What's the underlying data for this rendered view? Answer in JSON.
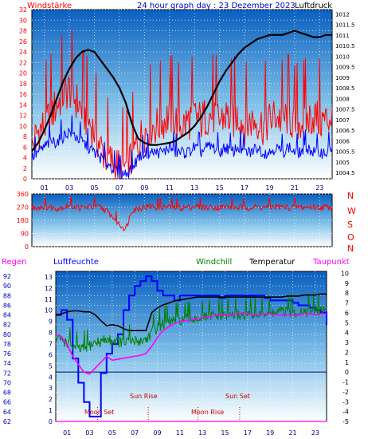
{
  "colors": {
    "wind": "#ff0000",
    "gust_base": "#0000ff",
    "pressure": "#000000",
    "humidity": "#0000ff",
    "windchill": "#008000",
    "temperature": "#000000",
    "dewpoint": "#ff00ff",
    "sun_moon_markers": "#cc0000",
    "zero_line": "#000080",
    "bg_top": "#0a60c0",
    "bg_bottom": "#ffffff"
  },
  "header": {
    "left": "Windstärke",
    "center": "24 hour graph day : 23 Dezember 2023",
    "right": "Luftdruck"
  },
  "direction_letters": [
    "N",
    "W",
    "S",
    "O",
    "N"
  ],
  "legend": {
    "regen": "Regen",
    "luftfeuchte": "Luftfeuchte",
    "windchill": "Windchill",
    "temperatur": "Temperatur",
    "taupunkt": "Taupunkt"
  },
  "events": [
    {
      "label": "Moon Set",
      "x": 3.7
    },
    {
      "label": "Sun Rise",
      "x": 8.2
    },
    {
      "label": "Moon Rise",
      "x": 12.6
    },
    {
      "label": "Sun Set",
      "x": 16.3
    }
  ],
  "chart_data": [
    {
      "type": "line",
      "title": "24 hour graph day : 23 Dezember 2023",
      "x_ticks": [
        "01",
        "03",
        "05",
        "07",
        "09",
        "11",
        "13",
        "15",
        "17",
        "19",
        "21",
        "23"
      ],
      "xlim": [
        0,
        24
      ],
      "y_left": {
        "label": "Windstärke",
        "ticks": [
          0,
          2,
          4,
          6,
          8,
          10,
          12,
          14,
          16,
          18,
          20,
          22,
          24,
          26,
          28,
          30,
          32
        ],
        "ylim": [
          0,
          32
        ]
      },
      "y_right": {
        "label": "Luftdruck",
        "ticks": [
          1004.5,
          1005,
          1005.5,
          1006,
          1006.5,
          1007,
          1007.5,
          1008,
          1008.5,
          1009,
          1009.5,
          1010,
          1010.5,
          1011,
          1011.5,
          1012
        ],
        "ylim": [
          1004.2,
          1012.2
        ]
      },
      "series": [
        {
          "name": "Windstärke",
          "axis": "left",
          "x": [
            0,
            0.5,
            1,
            1.5,
            2,
            2.5,
            3,
            3.5,
            4,
            4.5,
            5,
            5.5,
            6,
            6.5,
            7,
            7.5,
            8,
            8.5,
            9,
            9.5,
            10,
            10.5,
            11,
            11.5,
            12,
            12.5,
            13,
            13.5,
            14,
            14.5,
            15,
            15.5,
            16,
            16.5,
            17,
            17.5,
            18,
            18.5,
            19,
            19.5,
            20,
            20.5,
            21,
            21.5,
            22,
            22.5,
            23,
            23.5,
            24
          ],
          "values": [
            6,
            9,
            10,
            12,
            14,
            16,
            17,
            15,
            13,
            11,
            9,
            6,
            4,
            3,
            2,
            2,
            4,
            7,
            9,
            10,
            10,
            11,
            12,
            11,
            10,
            11,
            12,
            11,
            12,
            12,
            11,
            12,
            11,
            12,
            10,
            11,
            11,
            10,
            11,
            12,
            11,
            12,
            10,
            11,
            11,
            12,
            11,
            11,
            12
          ]
        },
        {
          "name": "Windstärke base",
          "axis": "left",
          "x": [
            0,
            0.5,
            1,
            1.5,
            2,
            2.5,
            3,
            3.5,
            4,
            4.5,
            5,
            5.5,
            6,
            6.5,
            7,
            7.5,
            8,
            8.5,
            9,
            9.5,
            10,
            10.5,
            11,
            11.5,
            12,
            12.5,
            13,
            13.5,
            14,
            14.5,
            15,
            15.5,
            16,
            16.5,
            17,
            17.5,
            18,
            18.5,
            19,
            19.5,
            20,
            20.5,
            21,
            21.5,
            22,
            22.5,
            23,
            23.5,
            24
          ],
          "values": [
            4,
            5,
            6,
            7,
            7,
            8,
            9,
            8,
            7,
            6,
            5,
            4,
            3,
            2,
            1,
            1,
            2,
            4,
            5,
            5,
            5,
            5,
            6,
            5,
            5,
            5,
            6,
            5,
            6,
            6,
            5,
            6,
            5,
            6,
            5,
            5,
            6,
            5,
            5,
            6,
            5,
            6,
            5,
            5,
            6,
            5,
            5,
            5,
            6
          ]
        },
        {
          "name": "Luftdruck",
          "axis": "right",
          "x": [
            0,
            0.5,
            1,
            1.5,
            2,
            2.5,
            3,
            3.5,
            4,
            4.5,
            5,
            5.5,
            6,
            6.5,
            7,
            7.5,
            8,
            8.5,
            9,
            9.5,
            10,
            10.5,
            11,
            11.5,
            12,
            12.5,
            13,
            13.5,
            14,
            14.5,
            15,
            15.5,
            16,
            16.5,
            17,
            17.5,
            18,
            18.5,
            19,
            19.5,
            20,
            20.5,
            21,
            21.5,
            22,
            22.5,
            23,
            23.5,
            24
          ],
          "values": [
            1005.5,
            1005.9,
            1006.5,
            1007.2,
            1008.0,
            1008.8,
            1009.4,
            1009.9,
            1010.2,
            1010.3,
            1010.2,
            1009.8,
            1009.4,
            1009.0,
            1008.5,
            1007.8,
            1006.8,
            1006.1,
            1005.9,
            1005.8,
            1005.8,
            1005.85,
            1005.9,
            1006.0,
            1006.2,
            1006.4,
            1006.7,
            1007.1,
            1007.6,
            1008.2,
            1008.8,
            1009.3,
            1009.7,
            1010.1,
            1010.4,
            1010.6,
            1010.8,
            1010.9,
            1011.0,
            1011.0,
            1011.0,
            1011.1,
            1011.2,
            1011.1,
            1011.0,
            1010.9,
            1010.9,
            1011.0,
            1011.0
          ]
        }
      ]
    },
    {
      "type": "line",
      "title": "",
      "xlim": [
        0,
        24
      ],
      "y_left": {
        "ticks": [
          0,
          90,
          180,
          270,
          360
        ],
        "ylim": [
          0,
          360
        ]
      },
      "series": [
        {
          "name": "Windrichtung",
          "x": [
            0,
            0.5,
            1,
            1.5,
            2,
            2.5,
            3,
            3.5,
            4,
            4.5,
            5,
            5.5,
            6,
            6.5,
            7,
            7.5,
            8,
            8.5,
            9,
            9.5,
            10,
            10.5,
            11,
            11.5,
            12,
            12.5,
            13,
            13.5,
            14,
            14.5,
            15,
            15.5,
            16,
            16.5,
            17,
            17.5,
            18,
            18.5,
            19,
            19.5,
            20,
            20.5,
            21,
            21.5,
            22,
            22.5,
            23,
            23.5,
            24
          ],
          "values": [
            265,
            270,
            275,
            268,
            262,
            270,
            280,
            272,
            265,
            270,
            275,
            268,
            240,
            200,
            150,
            120,
            250,
            262,
            270,
            275,
            268,
            270,
            272,
            268,
            265,
            270,
            275,
            272,
            268,
            270,
            268,
            272,
            270,
            268,
            265,
            270,
            272,
            268,
            270,
            275,
            270,
            268,
            272,
            270,
            268,
            272,
            268,
            270,
            272
          ]
        }
      ]
    },
    {
      "type": "line",
      "title": "",
      "x_ticks": [
        "01",
        "03",
        "05",
        "07",
        "09",
        "11",
        "13",
        "15",
        "17",
        "19",
        "21",
        "23"
      ],
      "xlim": [
        0,
        24
      ],
      "y_left": {
        "label": "Luftfeuchte",
        "ticks": [
          62,
          64,
          66,
          68,
          70,
          72,
          74,
          76,
          78,
          80,
          82,
          84,
          86,
          88,
          90,
          92
        ],
        "ylim": [
          62,
          93
        ]
      },
      "y_mid": {
        "label": "Regen",
        "ticks": [
          0,
          1,
          2,
          3,
          4,
          5,
          6,
          7,
          8,
          9,
          10,
          11,
          12,
          13
        ],
        "ylim": [
          0,
          13.5
        ]
      },
      "y_right": {
        "label": "Temperatur",
        "ticks": [
          -5,
          -4,
          -3,
          -2,
          -1,
          0,
          1,
          2,
          3,
          4,
          5,
          6,
          7,
          8,
          9,
          10
        ],
        "ylim": [
          -5,
          10.2
        ]
      },
      "series": [
        {
          "name": "Luftfeuchte",
          "axis": "left",
          "x": [
            0,
            0.5,
            1,
            1.5,
            2,
            2.5,
            3,
            3.5,
            4,
            4.5,
            5,
            5.5,
            6,
            6.5,
            7,
            7.5,
            8,
            8.5,
            9,
            9.5,
            10,
            10.5,
            11,
            11.5,
            12,
            12.5,
            13,
            13.5,
            14,
            14.5,
            15,
            15.5,
            16,
            16.5,
            17,
            17.5,
            18,
            18.5,
            19,
            19.5,
            20,
            20.5,
            21,
            21.5,
            22,
            22.5,
            23,
            23.5,
            24
          ],
          "values": [
            84,
            85,
            83,
            75,
            70,
            66,
            63,
            63,
            72,
            76,
            78,
            80,
            85,
            88,
            90,
            91,
            92,
            91,
            89,
            88,
            88,
            87,
            88,
            88,
            88,
            88,
            88,
            88,
            88,
            87.5,
            88,
            88,
            88,
            88,
            88,
            88,
            88,
            87.5,
            87,
            87,
            87,
            87,
            86.5,
            86,
            86,
            85.5,
            85,
            84.5,
            82
          ]
        },
        {
          "name": "Windchill",
          "axis": "right",
          "x": [
            0,
            0.5,
            1,
            1.5,
            2,
            2.5,
            3,
            3.5,
            4,
            4.5,
            5,
            5.5,
            6,
            6.5,
            7,
            7.5,
            8,
            8.5,
            9,
            9.5,
            10,
            10.5,
            11,
            11.5,
            12,
            12.5,
            13,
            13.5,
            14,
            14.5,
            15,
            15.5,
            16,
            16.5,
            17,
            17.5,
            18,
            18.5,
            19,
            19.5,
            20,
            20.5,
            21,
            21.5,
            22,
            22.5,
            23,
            23.5,
            24
          ],
          "values": [
            3.4,
            3.3,
            3.0,
            2.6,
            2.3,
            2.4,
            2.7,
            3.0,
            3.1,
            3.3,
            3.2,
            3.1,
            3.0,
            3.1,
            3.1,
            3.2,
            3.3,
            4.0,
            4.6,
            4.9,
            5.1,
            5.2,
            5.3,
            5.3,
            5.4,
            5.5,
            5.5,
            5.6,
            5.7,
            5.7,
            5.8,
            5.8,
            5.8,
            5.8,
            5.9,
            5.9,
            5.9,
            6.0,
            6.0,
            6.0,
            6.1,
            6.1,
            6.1,
            6.2,
            6.2,
            6.2,
            6.3,
            6.3,
            6.3
          ]
        },
        {
          "name": "Temperatur",
          "axis": "right",
          "x": [
            0,
            0.5,
            1,
            1.5,
            2,
            2.5,
            3,
            3.5,
            4,
            4.5,
            5,
            5.5,
            6,
            6.5,
            7,
            7.5,
            8,
            8.5,
            9,
            9.5,
            10,
            10.5,
            11,
            11.5,
            12,
            12.5,
            13,
            13.5,
            14,
            14.5,
            15,
            15.5,
            16,
            16.5,
            17,
            17.5,
            18,
            18.5,
            19,
            19.5,
            20,
            20.5,
            21,
            21.5,
            22,
            22.5,
            23,
            23.5,
            24
          ],
          "values": [
            5.8,
            5.9,
            6.1,
            6.2,
            6.2,
            6.1,
            6.1,
            5.8,
            5.2,
            4.7,
            4.8,
            4.7,
            4.4,
            4.2,
            4.2,
            4.2,
            4.2,
            6.0,
            6.5,
            6.8,
            7.0,
            7.2,
            7.3,
            7.4,
            7.5,
            7.6,
            7.6,
            7.6,
            7.6,
            7.6,
            7.6,
            7.6,
            7.6,
            7.6,
            7.6,
            7.6,
            7.6,
            7.6,
            7.6,
            7.6,
            7.6,
            7.7,
            7.7,
            7.7,
            7.8,
            7.8,
            7.8,
            7.9,
            7.9
          ]
        },
        {
          "name": "Taupunkt",
          "axis": "right",
          "x": [
            0,
            0.5,
            1,
            1.5,
            2,
            2.5,
            3,
            3.5,
            4,
            4.5,
            5,
            5.5,
            6,
            6.5,
            7,
            7.5,
            8,
            8.5,
            9,
            9.5,
            10,
            10.5,
            11,
            11.5,
            12,
            12.5,
            13,
            13.5,
            14,
            14.5,
            15,
            15.5,
            16,
            16.5,
            17,
            17.5,
            18,
            18.5,
            19,
            19.5,
            20,
            20.5,
            21,
            21.5,
            22,
            22.5,
            23,
            23.5,
            24
          ],
          "values": [
            3.8,
            3.6,
            2.8,
            1.6,
            0.8,
            0.0,
            -0.2,
            0.4,
            1.0,
            1.6,
            1.2,
            1.3,
            1.4,
            1.5,
            1.6,
            1.7,
            1.9,
            2.6,
            3.5,
            4.2,
            4.6,
            4.9,
            5.1,
            5.2,
            5.3,
            5.4,
            5.5,
            5.6,
            5.7,
            5.8,
            5.8,
            5.8,
            5.9,
            5.9,
            5.9,
            5.8,
            5.8,
            5.9,
            5.9,
            5.8,
            5.8,
            5.8,
            5.8,
            5.8,
            5.9,
            5.9,
            5.8,
            5.9,
            5.9
          ]
        },
        {
          "name": "Regen",
          "axis": "mid",
          "x": [
            0,
            0.5,
            1,
            1.5,
            2,
            2.5,
            3,
            3.5,
            4,
            4.5,
            5,
            5.5,
            6,
            6.5,
            7,
            7.5,
            8,
            8.5,
            9,
            9.5,
            10,
            10.5,
            11,
            11.5,
            12,
            12.5,
            13,
            13.5,
            14,
            14.5,
            15,
            15.5,
            16,
            16.5,
            17,
            17.5,
            18,
            18.5,
            19,
            19.5,
            20,
            20.5,
            21,
            21.5,
            22,
            22.5,
            23,
            23.5,
            24
          ],
          "values": [
            0,
            0,
            0,
            0,
            0,
            0,
            0,
            0,
            0,
            0,
            0,
            0,
            0,
            0,
            0,
            0,
            0,
            0,
            0,
            0,
            0,
            0,
            0,
            0,
            0,
            0,
            0,
            0,
            0,
            0,
            0,
            0,
            0,
            0,
            0,
            0,
            0,
            0,
            0,
            0,
            0,
            0,
            0,
            0,
            0,
            0,
            0,
            0,
            0
          ]
        }
      ]
    }
  ]
}
